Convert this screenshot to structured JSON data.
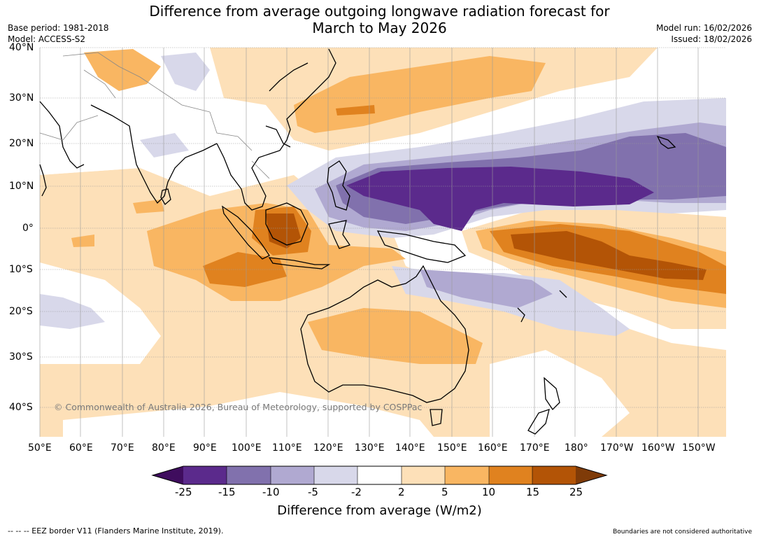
{
  "title_line1": "Difference from average outgoing longwave radiation forecast for",
  "title_line2": "March to May 2026",
  "base_period": "Base period: 1981-2018",
  "model": "Model: ACCESS-S2",
  "model_run": "Model run: 16/02/2026",
  "issued": "Issued: 18/02/2026",
  "lat_labels": [
    "40°N",
    "30°N",
    "20°N",
    "10°N",
    "0°",
    "10°S",
    "20°S",
    "30°S",
    "40°S"
  ],
  "lon_labels": [
    "50°E",
    "60°E",
    "70°E",
    "80°E",
    "90°E",
    "100°E",
    "110°E",
    "120°E",
    "130°E",
    "140°E",
    "150°E",
    "160°E",
    "170°E",
    "180°",
    "170°W",
    "160°W",
    "150°W"
  ],
  "colorbar": {
    "ticks": [
      "-25",
      "-15",
      "-10",
      "-5",
      "-2",
      "2",
      "5",
      "10",
      "15",
      "25"
    ],
    "colors": [
      "#3f0d5e",
      "#5b2a8c",
      "#8171ad",
      "#b0a9d1",
      "#d8d8ea",
      "#ffffff",
      "#fde0b8",
      "#f9b662",
      "#e0821f",
      "#b35406",
      "#7f3b08"
    ],
    "title": "Difference from average (W/m2)"
  },
  "credit": "© Commonwealth of Australia 2026, Bureau of Meteorology, supported by COSPPac",
  "eez_note": "-- -- -- EEZ border V11 (Flanders Marine Institute, 2019).",
  "disclaimer": "Boundaries are not considered authoritative"
}
